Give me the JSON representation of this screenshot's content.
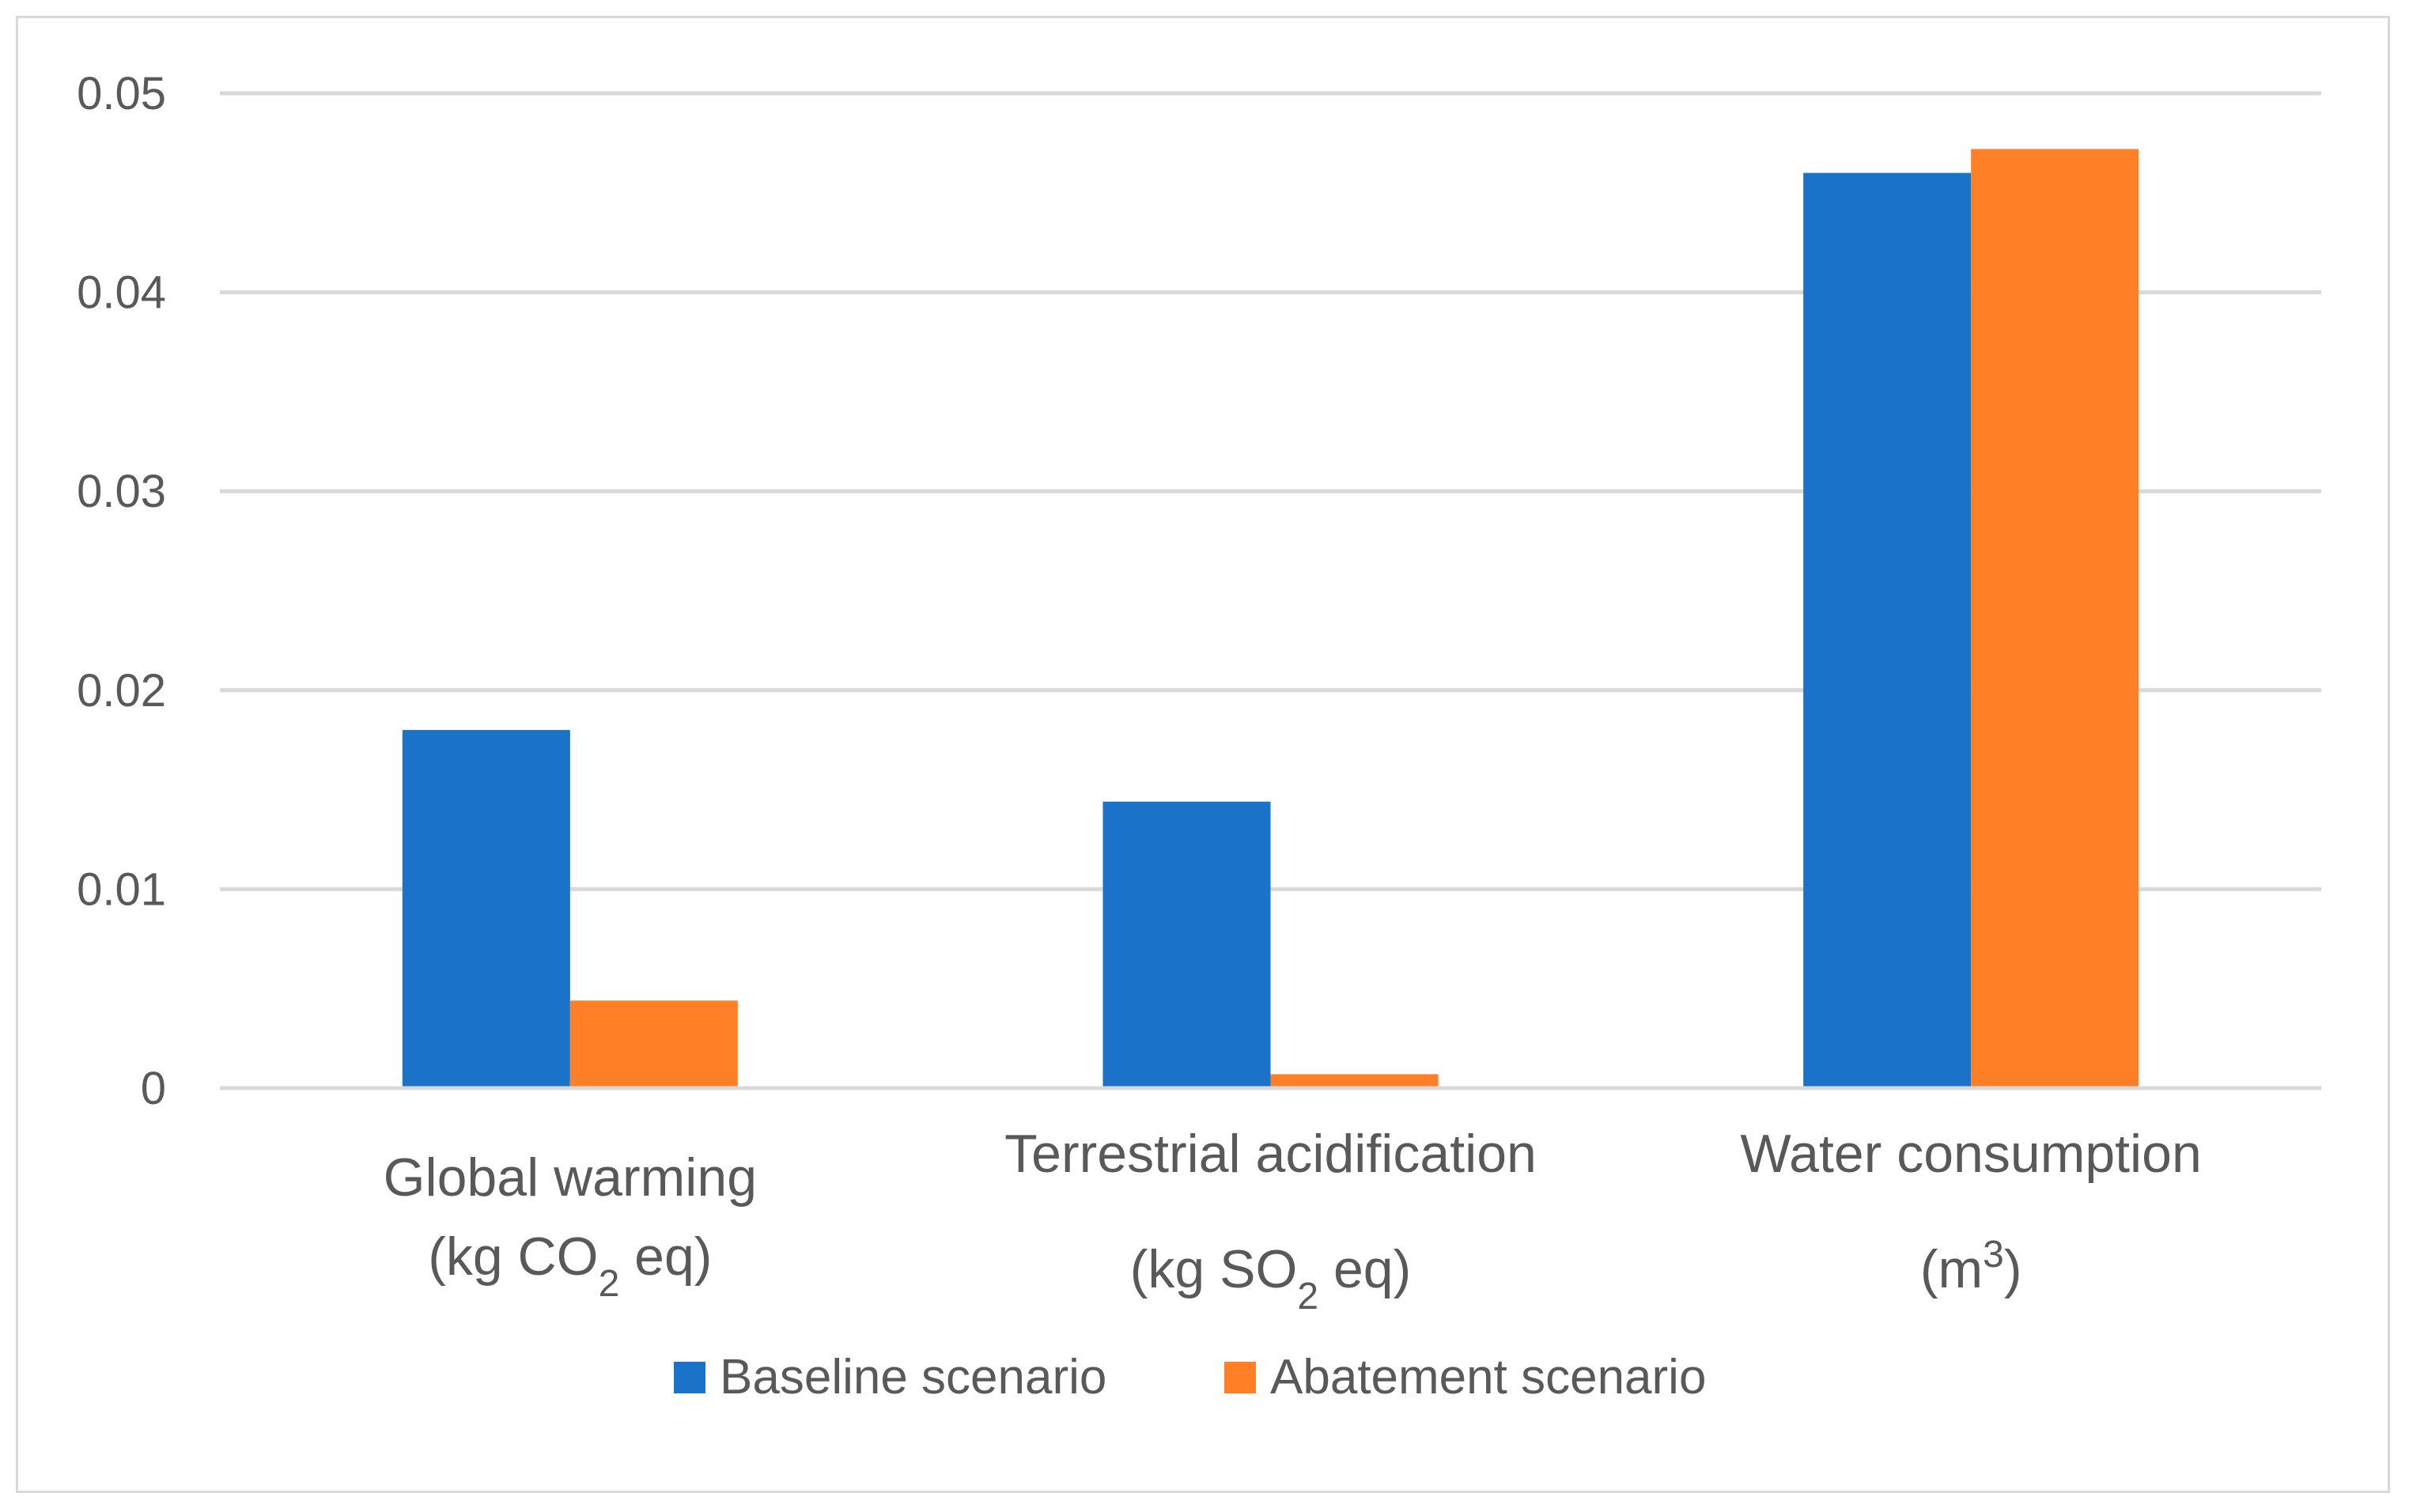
{
  "chart_data": {
    "type": "bar",
    "title": "",
    "xlabel": "",
    "ylabel": "",
    "ylim": [
      0,
      0.05
    ],
    "yticks": [
      "0",
      "0.01",
      "0.02",
      "0.03",
      "0.04",
      "0.05"
    ],
    "ytick_values": [
      0,
      0.01,
      0.02,
      0.03,
      0.04,
      0.05
    ],
    "categories": [
      {
        "line1": "Global warming",
        "line2": [
          {
            "text": "(kg CO",
            "sub": false
          },
          {
            "text": "2",
            "sub": true
          },
          {
            "text": " eq)",
            "sub": false
          }
        ]
      },
      {
        "line1": "Terrestrial acidification",
        "line2": [
          {
            "text": "(kg SO",
            "sub": false
          },
          {
            "text": "2",
            "sub": true
          },
          {
            "text": " eq)",
            "sub": false
          }
        ]
      },
      {
        "line1": "Water consumption",
        "line2": [
          {
            "text": "(m",
            "sub": false
          },
          {
            "text": "3",
            "sup": true
          },
          {
            "text": ")",
            "sub": false
          }
        ]
      }
    ],
    "series": [
      {
        "name": "Baseline scenario",
        "color": "#1a72c9",
        "values": [
          0.018,
          0.0144,
          0.046
        ]
      },
      {
        "name": "Abatement scenario",
        "color": "#ff7f27",
        "values": [
          0.0044,
          0.0007,
          0.0472
        ]
      }
    ],
    "legend_position": "bottom"
  }
}
